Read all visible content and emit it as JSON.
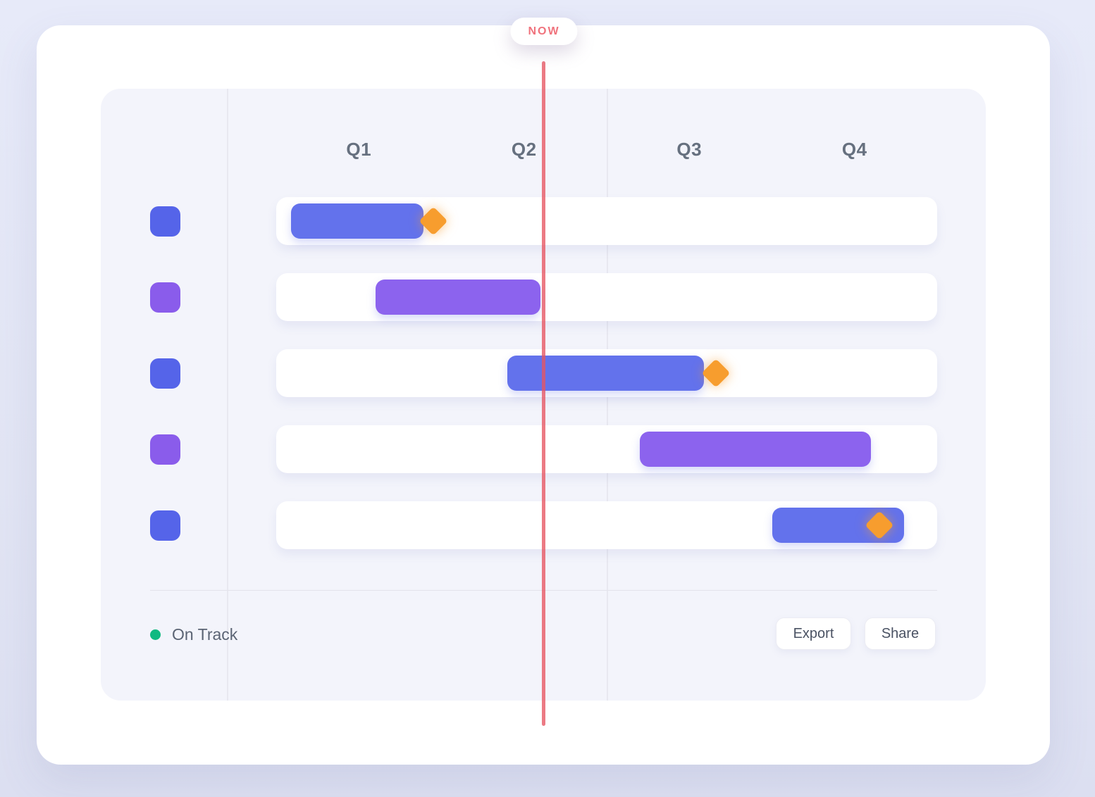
{
  "now_marker": {
    "label": "NOW",
    "text_color": "#f0737d",
    "line_color": "rgba(231,84,98,0.78)"
  },
  "header": {
    "quarters": [
      "Q1",
      "Q2",
      "Q3",
      "Q4"
    ]
  },
  "chart_data": {
    "type": "bar",
    "subtype": "gantt-timeline",
    "title": "",
    "x_axis": {
      "tick_labels": [
        "Q1",
        "Q2",
        "Q3",
        "Q4"
      ],
      "range": [
        0,
        4
      ],
      "units": "quarters"
    },
    "now_position": 1.62,
    "grid": "vertical lines at icon-column edge and Q2/Q3 boundary",
    "legend_position": "bottom-left",
    "milestone_color": "#f79d2e",
    "rows": [
      {
        "id": "task-1",
        "color_name": "blue",
        "bar_color": "#6372ec",
        "icon_color": "#5564e9",
        "start": 0.09,
        "end": 0.89,
        "milestone": 0.95
      },
      {
        "id": "task-2",
        "color_name": "purple",
        "bar_color": "#8c63ee",
        "icon_color": "#8a5ceb",
        "start": 0.6,
        "end": 1.6,
        "milestone": null
      },
      {
        "id": "task-3",
        "color_name": "blue",
        "bar_color": "#6372ec",
        "icon_color": "#5564e9",
        "start": 1.4,
        "end": 2.59,
        "milestone": 2.66
      },
      {
        "id": "task-4",
        "color_name": "purple",
        "bar_color": "#8c63ee",
        "icon_color": "#8a5ceb",
        "start": 2.2,
        "end": 3.6,
        "milestone": null
      },
      {
        "id": "task-5",
        "color_name": "blue",
        "bar_color": "#6372ec",
        "icon_color": "#5564e9",
        "start": 3.0,
        "end": 3.8,
        "milestone": 3.65
      }
    ]
  },
  "legend": {
    "label": "On Track",
    "dot_color": "#10b981"
  },
  "actions": {
    "export_label": "Export",
    "share_label": "Share"
  }
}
